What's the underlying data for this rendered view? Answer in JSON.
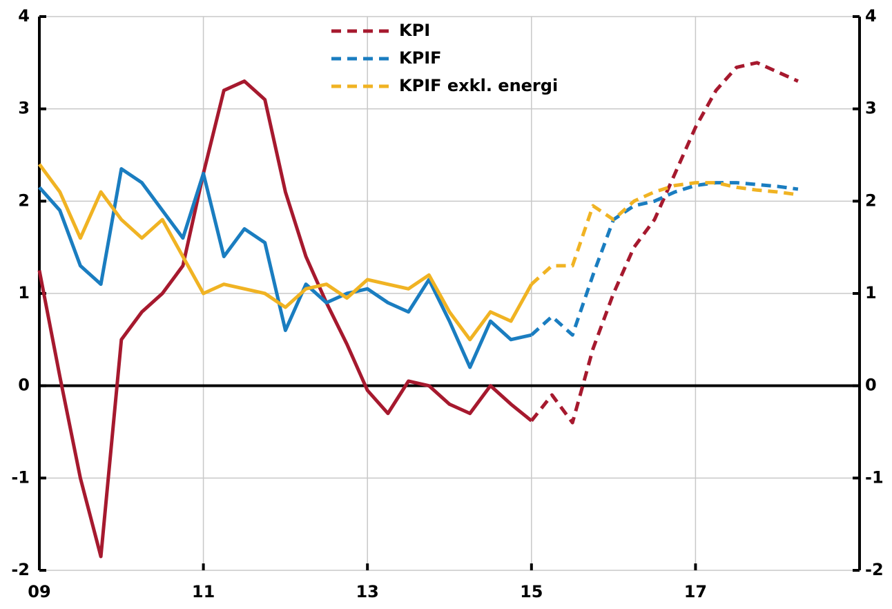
{
  "chart_data": {
    "type": "line",
    "x": [
      2009,
      2009.25,
      2009.5,
      2009.75,
      2010,
      2010.25,
      2010.5,
      2010.75,
      2011,
      2011.25,
      2011.5,
      2011.75,
      2012,
      2012.25,
      2012.5,
      2012.75,
      2013,
      2013.25,
      2013.5,
      2013.75,
      2014,
      2014.25,
      2014.5,
      2014.75,
      2015,
      2015.25,
      2015.5,
      2015.75,
      2016,
      2016.25,
      2016.5,
      2016.75,
      2017,
      2017.25,
      2017.5,
      2017.75,
      2018,
      2018.25
    ],
    "series": [
      {
        "name": "KPI",
        "color": "#a6192e",
        "values": [
          1.25,
          0.1,
          -1.0,
          -1.85,
          0.5,
          0.8,
          1.0,
          1.3,
          2.3,
          3.2,
          3.3,
          3.1,
          2.1,
          1.4,
          0.9,
          0.45,
          -0.05,
          -0.3,
          0.05,
          0.0,
          -0.2,
          -0.3,
          0.0,
          -0.2,
          -0.38,
          -0.1,
          -0.4,
          0.4,
          1.0,
          1.5,
          1.8,
          2.3,
          2.8,
          3.2,
          3.45,
          3.5,
          3.4,
          3.3
        ]
      },
      {
        "name": "KPIF",
        "color": "#1a7dc0",
        "values": [
          2.15,
          1.9,
          1.3,
          1.1,
          2.35,
          2.2,
          1.9,
          1.6,
          2.3,
          1.4,
          1.7,
          1.55,
          0.6,
          1.1,
          0.9,
          1.0,
          1.05,
          0.9,
          0.8,
          1.15,
          0.7,
          0.2,
          0.7,
          0.5,
          0.55,
          0.75,
          0.55,
          1.2,
          1.8,
          1.95,
          2.0,
          2.1,
          2.17,
          2.2,
          2.2,
          2.18,
          2.16,
          2.13
        ]
      },
      {
        "name": "KPIF exkl. energi",
        "color": "#f0b323",
        "values": [
          2.4,
          2.1,
          1.6,
          2.1,
          1.8,
          1.6,
          1.8,
          1.4,
          1.0,
          1.1,
          1.05,
          1.0,
          0.85,
          1.05,
          1.1,
          0.95,
          1.15,
          1.1,
          1.05,
          1.2,
          0.8,
          0.5,
          0.8,
          0.7,
          1.1,
          1.3,
          1.3,
          1.95,
          1.8,
          2.0,
          2.1,
          2.17,
          2.2,
          2.2,
          2.15,
          2.12,
          2.1,
          2.07
        ]
      }
    ],
    "forecast_from": 2015,
    "xlim": [
      2009,
      2019
    ],
    "xticks": [
      {
        "value": 2009,
        "label": "09"
      },
      {
        "value": 2011,
        "label": "11"
      },
      {
        "value": 2013,
        "label": "13"
      },
      {
        "value": 2015,
        "label": "15"
      },
      {
        "value": 2017,
        "label": "17"
      }
    ],
    "ylim": [
      -2,
      4
    ],
    "yticks": [
      -2,
      -1,
      0,
      1,
      2,
      3,
      4
    ],
    "y2lim": [
      -2,
      4
    ],
    "y2ticks": [
      -2,
      -1,
      0,
      1,
      2,
      3,
      4
    ],
    "grid": true
  }
}
